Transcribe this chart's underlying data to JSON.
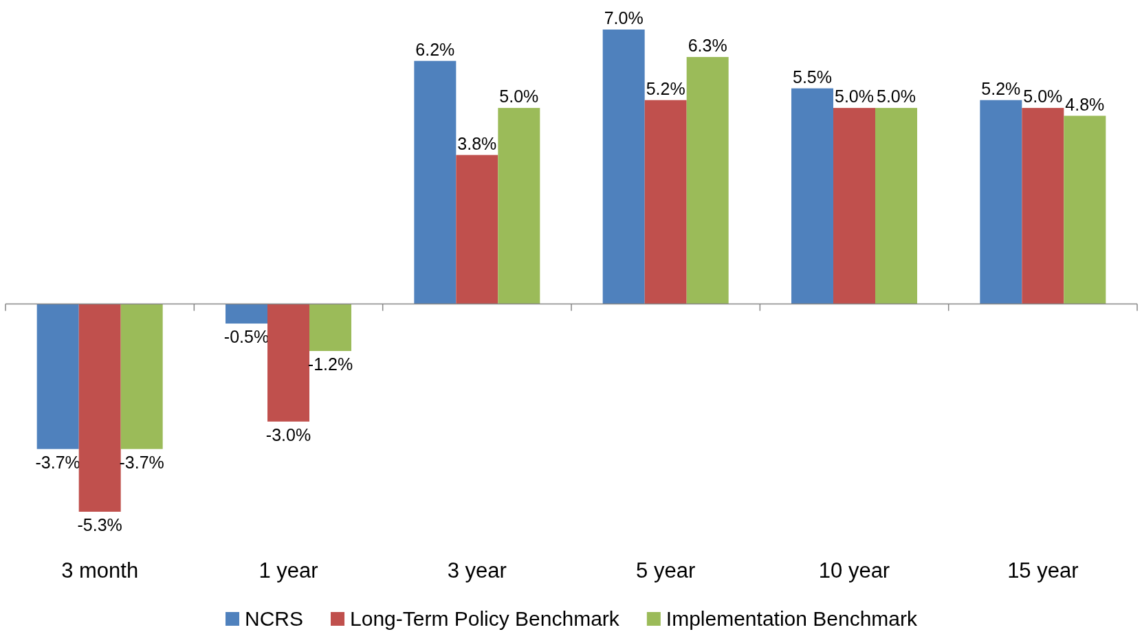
{
  "chart_data": {
    "type": "bar",
    "categories": [
      "3 month",
      "1 year",
      "3 year",
      "5 year",
      "10 year",
      "15 year"
    ],
    "series": [
      {
        "name": "NCRS",
        "color": "#4f81bd",
        "values": [
          -3.7,
          -0.5,
          6.2,
          7.0,
          5.5,
          5.2
        ],
        "value_labels": [
          "-3.7%",
          "-0.5%",
          "6.2%",
          "7.0%",
          "5.5%",
          "5.2%"
        ]
      },
      {
        "name": "Long-Term Policy Benchmark",
        "color": "#c0504d",
        "values": [
          -5.3,
          -3.0,
          3.8,
          5.2,
          5.0,
          5.0
        ],
        "value_labels": [
          "-5.3%",
          "-3.0%",
          "3.8%",
          "5.2%",
          "5.0%",
          "5.0%"
        ]
      },
      {
        "name": "Implementation Benchmark",
        "color": "#9bbb59",
        "values": [
          -3.7,
          -1.2,
          5.0,
          6.3,
          5.0,
          4.8
        ],
        "value_labels": [
          "-3.7%",
          "-1.2%",
          "5.0%",
          "6.3%",
          "5.0%",
          "4.8%"
        ]
      }
    ],
    "legend": "bottom"
  }
}
